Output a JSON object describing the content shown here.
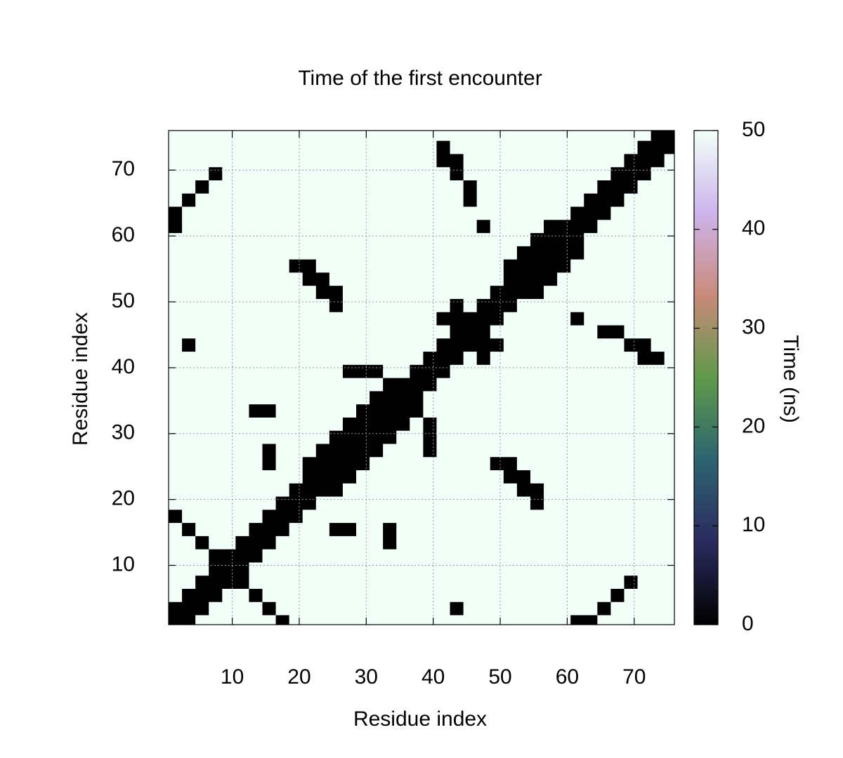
{
  "chart_data": {
    "type": "heatmap",
    "title": "Time of the first encounter",
    "xlabel": "Residue index",
    "ylabel": "Residue index",
    "colorbar_label": "Time (ns)",
    "xlim": [
      0.5,
      76
    ],
    "ylim": [
      1,
      76
    ],
    "xticks": [
      10,
      20,
      30,
      40,
      50,
      60,
      70
    ],
    "yticks": [
      10,
      20,
      30,
      40,
      50,
      60,
      70
    ],
    "zlim": [
      0,
      50
    ],
    "zticks": [
      0,
      10,
      20,
      30,
      40,
      50
    ],
    "grid": true,
    "colormap": [
      "#000000",
      "#2b2a5e",
      "#2c6470",
      "#5f9a4a",
      "#c98a7a",
      "#cdb4ec",
      "#f2fff8"
    ],
    "x": [
      1.5,
      3.5,
      5.5,
      7.5,
      9.5,
      11.5,
      13.5,
      15.5,
      17.5,
      19.5,
      21.5,
      23.5,
      25.5,
      27.5,
      29.5,
      31.5,
      33.5,
      35.5,
      37.5,
      39.5,
      41.5,
      43.5,
      45.5,
      47.5,
      49.5,
      51.5,
      53.5,
      55.5,
      57.5,
      59.5,
      61.5,
      63.5,
      65.5,
      67.5,
      69.5,
      71.5,
      73.5,
      75.5
    ],
    "y": [
      1.5,
      3.5,
      5.5,
      7.5,
      9.5,
      11.5,
      13.5,
      15.5,
      17.5,
      19.5,
      21.5,
      23.5,
      25.5,
      27.5,
      29.5,
      31.5,
      33.5,
      35.5,
      37.5,
      39.5,
      41.5,
      43.5,
      45.5,
      47.5,
      49.5,
      51.5,
      53.5,
      55.5,
      57.5,
      59.5,
      61.5,
      63.5,
      65.5,
      67.5,
      69.5,
      71.5,
      73.5,
      75.5
    ],
    "z": [
      [
        0,
        0,
        50,
        50,
        50,
        50,
        50,
        50,
        0,
        50,
        50,
        50,
        50,
        50,
        50,
        50,
        50,
        50,
        50,
        50,
        50,
        50,
        50,
        50,
        50,
        50,
        50,
        50,
        50,
        50,
        0,
        0,
        50,
        50,
        50,
        50,
        50,
        50
      ],
      [
        0,
        0,
        0,
        50,
        50,
        50,
        50,
        0,
        50,
        50,
        50,
        50,
        50,
        50,
        50,
        50,
        50,
        50,
        50,
        50,
        50,
        0,
        50,
        50,
        50,
        50,
        50,
        50,
        50,
        50,
        50,
        50,
        0,
        50,
        50,
        50,
        50,
        50
      ],
      [
        50,
        0,
        0,
        0,
        50,
        50,
        0,
        50,
        50,
        50,
        50,
        50,
        50,
        50,
        50,
        50,
        50,
        50,
        50,
        50,
        50,
        50,
        50,
        50,
        50,
        50,
        50,
        50,
        50,
        50,
        50,
        50,
        50,
        0,
        50,
        50,
        50,
        50
      ],
      [
        50,
        50,
        0,
        0,
        0,
        0,
        50,
        50,
        50,
        50,
        50,
        50,
        50,
        50,
        50,
        50,
        50,
        50,
        50,
        50,
        50,
        50,
        50,
        50,
        50,
        50,
        50,
        50,
        50,
        50,
        50,
        50,
        50,
        50,
        0,
        50,
        50,
        50
      ],
      [
        50,
        50,
        50,
        0,
        0,
        0,
        50,
        50,
        50,
        50,
        50,
        50,
        50,
        50,
        50,
        50,
        50,
        50,
        50,
        50,
        50,
        50,
        50,
        50,
        50,
        50,
        50,
        50,
        50,
        50,
        50,
        50,
        50,
        50,
        50,
        50,
        50,
        50
      ],
      [
        50,
        50,
        50,
        0,
        0,
        0,
        0,
        50,
        50,
        50,
        50,
        50,
        50,
        50,
        50,
        50,
        50,
        50,
        50,
        50,
        50,
        50,
        50,
        50,
        50,
        50,
        50,
        50,
        50,
        50,
        50,
        50,
        50,
        50,
        50,
        50,
        50,
        50
      ],
      [
        50,
        50,
        0,
        50,
        50,
        0,
        0,
        0,
        50,
        50,
        50,
        50,
        50,
        50,
        50,
        50,
        0,
        50,
        50,
        50,
        50,
        50,
        50,
        50,
        50,
        50,
        50,
        50,
        50,
        50,
        50,
        50,
        50,
        50,
        50,
        50,
        50,
        50
      ],
      [
        50,
        0,
        50,
        50,
        50,
        50,
        0,
        0,
        0,
        50,
        50,
        50,
        0,
        0,
        50,
        50,
        0,
        50,
        50,
        50,
        50,
        50,
        50,
        50,
        50,
        50,
        50,
        50,
        50,
        50,
        50,
        50,
        50,
        50,
        50,
        50,
        50,
        50
      ],
      [
        0,
        50,
        50,
        50,
        50,
        50,
        50,
        0,
        0,
        0,
        50,
        50,
        50,
        50,
        50,
        50,
        50,
        50,
        50,
        50,
        50,
        50,
        50,
        50,
        50,
        50,
        50,
        50,
        50,
        50,
        50,
        50,
        50,
        50,
        50,
        50,
        50,
        50
      ],
      [
        50,
        50,
        50,
        50,
        50,
        50,
        50,
        50,
        0,
        0,
        0,
        50,
        50,
        50,
        50,
        50,
        50,
        50,
        50,
        50,
        50,
        50,
        50,
        50,
        50,
        50,
        50,
        0,
        50,
        50,
        50,
        50,
        50,
        50,
        50,
        50,
        50,
        50
      ],
      [
        50,
        50,
        50,
        50,
        50,
        50,
        50,
        50,
        50,
        0,
        0,
        0,
        0,
        50,
        50,
        50,
        50,
        50,
        50,
        50,
        50,
        50,
        50,
        50,
        50,
        50,
        0,
        0,
        50,
        50,
        50,
        50,
        50,
        50,
        50,
        50,
        50,
        50
      ],
      [
        50,
        50,
        50,
        50,
        50,
        50,
        50,
        50,
        50,
        50,
        0,
        0,
        0,
        0,
        50,
        50,
        50,
        50,
        50,
        50,
        50,
        50,
        50,
        50,
        50,
        0,
        0,
        50,
        50,
        50,
        50,
        50,
        50,
        50,
        50,
        50,
        50,
        50
      ],
      [
        50,
        50,
        50,
        50,
        50,
        50,
        50,
        0,
        50,
        50,
        0,
        0,
        0,
        0,
        0,
        50,
        50,
        50,
        50,
        50,
        50,
        50,
        50,
        50,
        0,
        0,
        50,
        50,
        50,
        50,
        50,
        50,
        50,
        50,
        50,
        50,
        50,
        50
      ],
      [
        50,
        50,
        50,
        50,
        50,
        50,
        50,
        0,
        50,
        50,
        50,
        0,
        0,
        0,
        0,
        0,
        50,
        50,
        50,
        0,
        50,
        50,
        50,
        50,
        50,
        50,
        50,
        50,
        50,
        50,
        50,
        50,
        50,
        50,
        50,
        50,
        50,
        50
      ],
      [
        50,
        50,
        50,
        50,
        50,
        50,
        50,
        50,
        50,
        50,
        50,
        50,
        0,
        0,
        0,
        0,
        0,
        50,
        50,
        0,
        50,
        50,
        50,
        50,
        50,
        50,
        50,
        50,
        50,
        50,
        50,
        50,
        50,
        50,
        50,
        50,
        50,
        50
      ],
      [
        50,
        50,
        50,
        50,
        50,
        50,
        50,
        50,
        50,
        50,
        50,
        50,
        50,
        0,
        0,
        0,
        0,
        0,
        50,
        0,
        50,
        50,
        50,
        50,
        50,
        50,
        50,
        50,
        50,
        50,
        50,
        50,
        50,
        50,
        50,
        50,
        50,
        50
      ],
      [
        50,
        50,
        50,
        50,
        50,
        50,
        0,
        0,
        50,
        50,
        50,
        50,
        50,
        50,
        0,
        0,
        0,
        0,
        0,
        50,
        50,
        50,
        50,
        50,
        50,
        50,
        50,
        50,
        50,
        50,
        50,
        50,
        50,
        50,
        50,
        50,
        50,
        50
      ],
      [
        50,
        50,
        50,
        50,
        50,
        50,
        50,
        50,
        50,
        50,
        50,
        50,
        50,
        50,
        50,
        0,
        0,
        0,
        0,
        50,
        50,
        50,
        50,
        50,
        50,
        50,
        50,
        50,
        50,
        50,
        50,
        50,
        50,
        50,
        50,
        50,
        50,
        50
      ],
      [
        50,
        50,
        50,
        50,
        50,
        50,
        50,
        50,
        50,
        50,
        50,
        50,
        50,
        50,
        50,
        50,
        0,
        0,
        0,
        0,
        50,
        50,
        50,
        50,
        50,
        50,
        50,
        50,
        50,
        50,
        50,
        50,
        50,
        50,
        50,
        50,
        50,
        50
      ],
      [
        50,
        50,
        50,
        50,
        50,
        50,
        50,
        50,
        50,
        50,
        50,
        50,
        50,
        0,
        0,
        0,
        50,
        50,
        0,
        0,
        0,
        50,
        50,
        50,
        50,
        50,
        50,
        50,
        50,
        50,
        50,
        50,
        50,
        50,
        50,
        50,
        50,
        50
      ],
      [
        50,
        50,
        50,
        50,
        50,
        50,
        50,
        50,
        50,
        50,
        50,
        50,
        50,
        50,
        50,
        50,
        50,
        50,
        50,
        0,
        0,
        0,
        50,
        0,
        50,
        50,
        50,
        50,
        50,
        50,
        50,
        50,
        50,
        50,
        50,
        0,
        0,
        50
      ],
      [
        50,
        0,
        50,
        50,
        50,
        50,
        50,
        50,
        50,
        50,
        50,
        50,
        50,
        50,
        50,
        50,
        50,
        50,
        50,
        50,
        0,
        0,
        0,
        0,
        0,
        50,
        50,
        50,
        50,
        50,
        50,
        50,
        50,
        50,
        0,
        0,
        50,
        50
      ],
      [
        50,
        50,
        50,
        50,
        50,
        50,
        50,
        50,
        50,
        50,
        50,
        50,
        50,
        50,
        50,
        50,
        50,
        50,
        50,
        50,
        50,
        0,
        0,
        0,
        50,
        50,
        50,
        50,
        50,
        50,
        50,
        50,
        0,
        0,
        50,
        50,
        50,
        50
      ],
      [
        50,
        50,
        50,
        50,
        50,
        50,
        50,
        50,
        50,
        50,
        50,
        50,
        50,
        50,
        50,
        50,
        50,
        50,
        50,
        50,
        0,
        0,
        0,
        0,
        0,
        50,
        50,
        50,
        50,
        50,
        0,
        50,
        50,
        50,
        50,
        50,
        50,
        50
      ],
      [
        50,
        50,
        50,
        50,
        50,
        50,
        50,
        50,
        50,
        50,
        50,
        50,
        0,
        50,
        50,
        50,
        50,
        50,
        50,
        50,
        50,
        0,
        50,
        0,
        0,
        0,
        50,
        50,
        50,
        50,
        50,
        50,
        50,
        50,
        50,
        50,
        50,
        50
      ],
      [
        50,
        50,
        50,
        50,
        50,
        50,
        50,
        50,
        50,
        50,
        50,
        0,
        0,
        50,
        50,
        50,
        50,
        50,
        50,
        50,
        50,
        50,
        50,
        50,
        0,
        0,
        0,
        0,
        50,
        50,
        50,
        50,
        50,
        50,
        50,
        50,
        50,
        50
      ],
      [
        50,
        50,
        50,
        50,
        50,
        50,
        50,
        50,
        50,
        50,
        0,
        0,
        50,
        50,
        50,
        50,
        50,
        50,
        50,
        50,
        50,
        50,
        50,
        50,
        50,
        0,
        0,
        0,
        0,
        50,
        50,
        50,
        50,
        50,
        50,
        50,
        50,
        50
      ],
      [
        50,
        50,
        50,
        50,
        50,
        50,
        50,
        50,
        50,
        0,
        0,
        50,
        50,
        50,
        50,
        50,
        50,
        50,
        50,
        50,
        50,
        50,
        50,
        50,
        50,
        0,
        0,
        0,
        0,
        0,
        50,
        50,
        50,
        50,
        50,
        50,
        50,
        50
      ],
      [
        50,
        50,
        50,
        50,
        50,
        50,
        50,
        50,
        50,
        50,
        50,
        50,
        50,
        50,
        50,
        50,
        50,
        50,
        50,
        50,
        50,
        50,
        50,
        50,
        50,
        50,
        0,
        0,
        0,
        0,
        0,
        50,
        50,
        50,
        50,
        50,
        50,
        50
      ],
      [
        50,
        50,
        50,
        50,
        50,
        50,
        50,
        50,
        50,
        50,
        50,
        50,
        50,
        50,
        50,
        50,
        50,
        50,
        50,
        50,
        50,
        50,
        50,
        50,
        50,
        50,
        50,
        0,
        0,
        0,
        0,
        50,
        50,
        50,
        50,
        50,
        50,
        50
      ],
      [
        0,
        50,
        50,
        50,
        50,
        50,
        50,
        50,
        50,
        50,
        50,
        50,
        50,
        50,
        50,
        50,
        50,
        50,
        50,
        50,
        50,
        50,
        50,
        0,
        50,
        50,
        50,
        50,
        0,
        0,
        0,
        0,
        50,
        50,
        50,
        50,
        50,
        50
      ],
      [
        0,
        50,
        50,
        50,
        50,
        50,
        50,
        50,
        50,
        50,
        50,
        50,
        50,
        50,
        50,
        50,
        50,
        50,
        50,
        50,
        50,
        50,
        50,
        50,
        50,
        50,
        50,
        50,
        50,
        50,
        0,
        0,
        0,
        50,
        50,
        50,
        50,
        50
      ],
      [
        50,
        0,
        50,
        50,
        50,
        50,
        50,
        50,
        50,
        50,
        50,
        50,
        50,
        50,
        50,
        50,
        50,
        50,
        50,
        50,
        50,
        50,
        0,
        50,
        50,
        50,
        50,
        50,
        50,
        50,
        50,
        0,
        0,
        0,
        50,
        50,
        50,
        50
      ],
      [
        50,
        50,
        0,
        50,
        50,
        50,
        50,
        50,
        50,
        50,
        50,
        50,
        50,
        50,
        50,
        50,
        50,
        50,
        50,
        50,
        50,
        50,
        0,
        50,
        50,
        50,
        50,
        50,
        50,
        50,
        50,
        50,
        0,
        0,
        0,
        50,
        50,
        50
      ],
      [
        50,
        50,
        50,
        0,
        50,
        50,
        50,
        50,
        50,
        50,
        50,
        50,
        50,
        50,
        50,
        50,
        50,
        50,
        50,
        50,
        50,
        0,
        50,
        50,
        50,
        50,
        50,
        50,
        50,
        50,
        50,
        50,
        50,
        0,
        0,
        0,
        50,
        50
      ],
      [
        50,
        50,
        50,
        50,
        50,
        50,
        50,
        50,
        50,
        50,
        50,
        50,
        50,
        50,
        50,
        50,
        50,
        50,
        50,
        50,
        0,
        0,
        50,
        50,
        50,
        50,
        50,
        50,
        50,
        50,
        50,
        50,
        50,
        50,
        0,
        0,
        0,
        50
      ],
      [
        50,
        50,
        50,
        50,
        50,
        50,
        50,
        50,
        50,
        50,
        50,
        50,
        50,
        50,
        50,
        50,
        50,
        50,
        50,
        50,
        0,
        50,
        50,
        50,
        50,
        50,
        50,
        50,
        50,
        50,
        50,
        50,
        50,
        50,
        50,
        0,
        0,
        0
      ],
      [
        50,
        50,
        50,
        50,
        50,
        50,
        50,
        50,
        50,
        50,
        50,
        50,
        50,
        50,
        50,
        50,
        50,
        50,
        50,
        50,
        50,
        50,
        50,
        50,
        50,
        50,
        50,
        50,
        50,
        50,
        50,
        50,
        50,
        50,
        50,
        50,
        0,
        0
      ]
    ]
  }
}
